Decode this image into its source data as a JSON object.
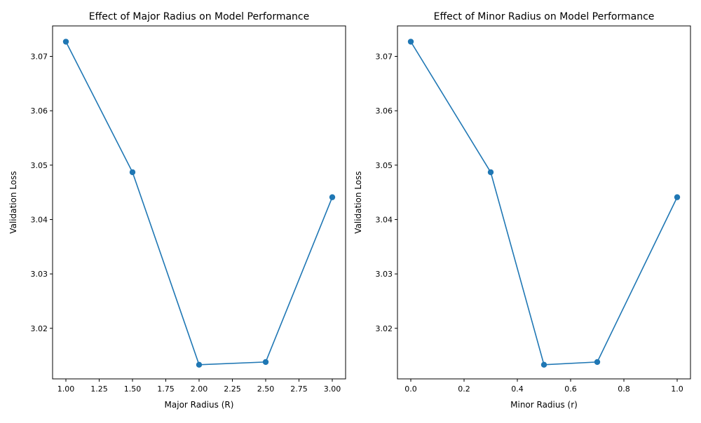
{
  "chart_data": [
    {
      "type": "line",
      "title": "Effect of Major Radius on Model Performance",
      "xlabel": "Major Radius (R)",
      "ylabel": "Validation Loss",
      "x": [
        1.0,
        1.5,
        2.0,
        2.5,
        3.0
      ],
      "y": [
        3.0727,
        3.0487,
        3.0133,
        3.0138,
        3.0441
      ],
      "xlim": [
        0.9,
        3.1
      ],
      "ylim": [
        3.0107,
        3.0756
      ],
      "xticks": [
        1.0,
        1.25,
        1.5,
        1.75,
        2.0,
        2.25,
        2.5,
        2.75,
        3.0
      ],
      "xtick_labels": [
        "1.00",
        "1.25",
        "1.50",
        "1.75",
        "2.00",
        "2.25",
        "2.50",
        "2.75",
        "3.00"
      ],
      "yticks": [
        3.02,
        3.03,
        3.04,
        3.05,
        3.06,
        3.07
      ],
      "ytick_labels": [
        "3.02",
        "3.03",
        "3.04",
        "3.05",
        "3.06",
        "3.07"
      ],
      "grid": false,
      "marker": "circle",
      "color": "#1f77b4"
    },
    {
      "type": "line",
      "title": "Effect of Minor Radius on Model Performance",
      "xlabel": "Minor Radius (r)",
      "ylabel": "Validation Loss",
      "x": [
        0.0,
        0.3,
        0.5,
        0.7,
        1.0
      ],
      "y": [
        3.0727,
        3.0487,
        3.0133,
        3.0138,
        3.0441
      ],
      "xlim": [
        -0.05,
        1.05
      ],
      "ylim": [
        3.0107,
        3.0756
      ],
      "xticks": [
        0.0,
        0.2,
        0.4,
        0.6,
        0.8,
        1.0
      ],
      "xtick_labels": [
        "0.0",
        "0.2",
        "0.4",
        "0.6",
        "0.8",
        "1.0"
      ],
      "yticks": [
        3.02,
        3.03,
        3.04,
        3.05,
        3.06,
        3.07
      ],
      "ytick_labels": [
        "3.02",
        "3.03",
        "3.04",
        "3.05",
        "3.06",
        "3.07"
      ],
      "grid": false,
      "marker": "circle",
      "color": "#1f77b4"
    }
  ]
}
